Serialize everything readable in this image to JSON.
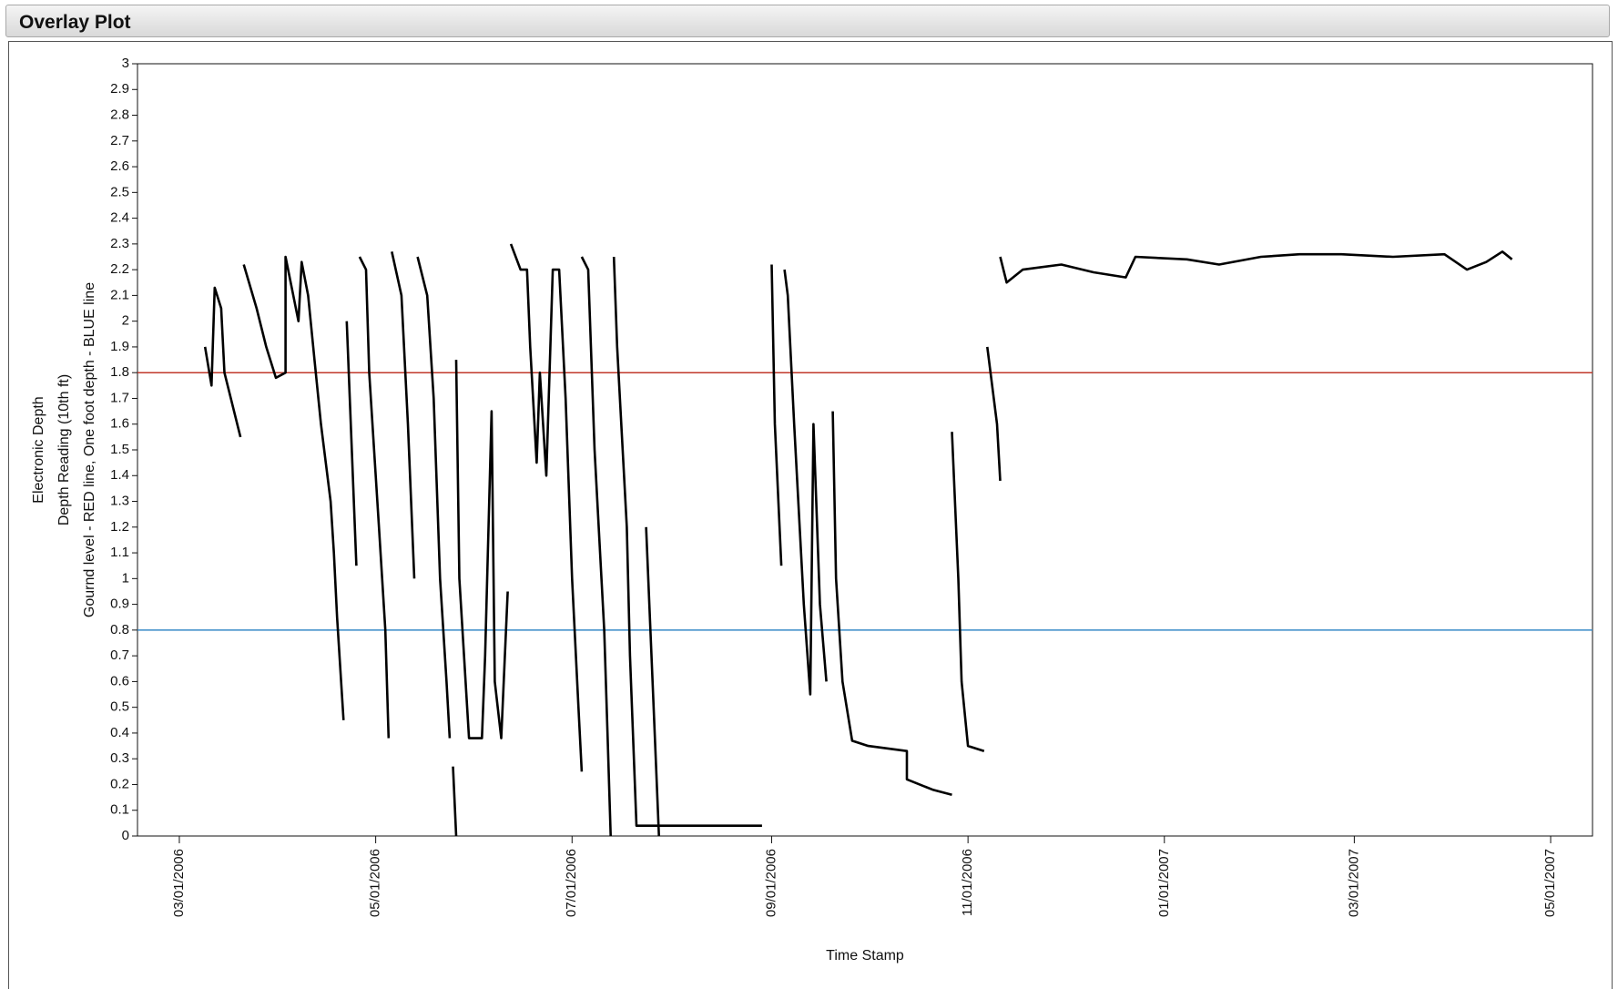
{
  "header": {
    "title": "Overlay Plot"
  },
  "chart_data": {
    "type": "line",
    "x_label": "Time Stamp",
    "y_label": [
      "Electronic Depth",
      "Depth Reading (10th ft)",
      "Gournd level - RED line, One foot depth - BLUE line"
    ],
    "color": "#000000",
    "x": [
      "03/09/2006",
      "03/11/2006",
      "03/12/2006",
      "03/14/2006",
      "03/15/2006",
      "03/20/2006",
      "03/21/2006",
      "03/21/2006",
      "03/25/2006",
      "03/28/2006",
      "03/31/2006",
      "04/03/2006",
      "04/03/2006",
      "04/07/2006",
      "04/08/2006",
      "04/10/2006",
      "04/12/2006",
      "04/14/2006",
      "04/17/2006",
      "04/18/2006",
      "04/19/2006",
      "04/21/2006",
      "04/22/2006",
      "04/22/2006",
      "04/25/2006",
      "04/26/2006",
      "04/26/2006",
      "04/28/2006",
      "04/29/2006",
      "05/02/2006",
      "05/04/2006",
      "05/05/2006",
      "05/06/2006",
      "05/06/2006",
      "05/09/2006",
      "05/11/2006",
      "05/13/2006",
      "05/14/2006",
      "05/14/2006",
      "05/17/2006",
      "05/19/2006",
      "05/21/2006",
      "05/23/2006",
      "05/24/2006",
      "05/25/2006",
      "05/25/2006",
      "05/26/2006",
      "05/26/2006",
      "05/26/2006",
      "05/27/2006",
      "05/30/2006",
      "06/03/2006",
      "06/04/2006",
      "06/06/2006",
      "06/07/2006",
      "06/09/2006",
      "06/11/2006",
      "06/12/2006",
      "06/12/2006",
      "06/15/2006",
      "06/17/2006",
      "06/18/2006",
      "06/20/2006",
      "06/21/2006",
      "06/23/2006",
      "06/25/2006",
      "06/27/2006",
      "06/29/2006",
      "07/01/2006",
      "07/03/2006",
      "07/04/2006",
      "07/04/2006",
      "07/04/2006",
      "07/06/2006",
      "07/08/2006",
      "07/11/2006",
      "07/12/2006",
      "07/13/2006",
      "07/14/2006",
      "07/14/2006",
      "07/15/2006",
      "07/18/2006",
      "07/19/2006",
      "07/21/2006",
      "08/29/2006",
      "07/24/2006",
      "07/24/2006",
      "07/26/2006",
      "07/28/2006",
      "09/01/2006",
      "09/01/2006",
      "09/02/2006",
      "09/04/2006",
      "09/05/2006",
      "09/05/2006",
      "09/06/2006",
      "09/08/2006",
      "09/11/2006",
      "09/13/2006",
      "09/14/2006",
      "09/16/2006",
      "09/18/2006",
      "09/20/2006",
      "09/20/2006",
      "09/21/2006",
      "09/23/2006",
      "09/26/2006",
      "10/01/2006",
      "10/13/2006",
      "10/13/2006",
      "10/21/2006",
      "10/27/2006",
      "10/27/2006",
      "10/27/2006",
      "10/29/2006",
      "10/30/2006",
      "11/01/2006",
      "11/06/2006",
      "11/07/2006",
      "11/07/2006",
      "11/10/2006",
      "11/11/2006",
      "11/11/2006",
      "11/11/2006",
      "11/13/2006",
      "11/18/2006",
      "11/30/2006",
      "12/10/2006",
      "12/20/2006",
      "12/23/2006",
      "01/08/2007",
      "01/18/2007",
      "01/31/2007",
      "02/12/2007",
      "02/25/2007",
      "03/13/2007",
      "03/29/2007",
      "04/05/2007",
      "04/11/2007",
      "04/16/2007",
      "04/19/2007"
    ],
    "values": [
      1.9,
      1.75,
      2.13,
      2.05,
      1.8,
      1.55,
      null,
      2.22,
      2.05,
      1.9,
      1.78,
      1.8,
      2.25,
      2.0,
      2.23,
      2.1,
      1.85,
      1.6,
      1.3,
      1.1,
      0.85,
      0.45,
      null,
      2.0,
      1.05,
      null,
      2.25,
      2.2,
      1.8,
      1.2,
      0.8,
      0.38,
      null,
      2.27,
      2.1,
      1.6,
      1.0,
      null,
      2.25,
      2.1,
      1.7,
      1.0,
      0.6,
      0.38,
      null,
      0.27,
      0.0,
      null,
      1.85,
      1.0,
      0.38,
      0.38,
      0.7,
      1.65,
      0.6,
      0.38,
      0.95,
      null,
      2.3,
      2.2,
      2.2,
      1.9,
      1.45,
      1.8,
      1.4,
      2.2,
      2.2,
      1.7,
      1.0,
      0.5,
      0.25,
      null,
      2.25,
      2.2,
      1.5,
      0.8,
      0.4,
      0.0,
      null,
      2.25,
      1.9,
      1.2,
      0.7,
      0.04,
      0.04,
      null,
      1.2,
      0.6,
      0.0,
      null,
      2.22,
      1.6,
      1.05,
      null,
      2.2,
      2.1,
      1.6,
      0.9,
      0.55,
      1.6,
      0.9,
      0.6,
      null,
      1.65,
      1.0,
      0.6,
      0.37,
      0.35,
      0.33,
      0.22,
      0.18,
      0.16,
      null,
      1.57,
      1.0,
      0.6,
      0.35,
      0.33,
      null,
      1.9,
      1.6,
      1.38,
      null,
      2.25,
      2.15,
      2.2,
      2.22,
      2.19,
      2.17,
      2.25,
      2.24,
      2.22,
      2.25,
      2.26,
      2.26,
      2.25,
      2.26,
      2.2,
      2.23,
      2.27,
      2.24
    ],
    "reference_lines": [
      {
        "value": 1.8,
        "color": "#c0392b"
      },
      {
        "value": 0.8,
        "color": "#3a8cc8"
      }
    ],
    "xlim": [
      "02/16/2006",
      "05/14/2007"
    ],
    "xticks": [
      "03/01/2006",
      "05/01/2006",
      "07/01/2006",
      "09/01/2006",
      "11/01/2006",
      "01/01/2007",
      "03/01/2007",
      "05/01/2007"
    ],
    "ylim": [
      0,
      3
    ],
    "yticks": [
      0,
      0.1,
      0.2,
      0.3,
      0.4,
      0.5,
      0.6,
      0.7,
      0.8,
      0.9,
      1,
      1.1,
      1.2,
      1.3,
      1.4,
      1.5,
      1.6,
      1.7,
      1.8,
      1.9,
      2,
      2.1,
      2.2,
      2.3,
      2.4,
      2.5,
      2.6,
      2.7,
      2.8,
      2.9,
      3
    ],
    "grid": false
  }
}
